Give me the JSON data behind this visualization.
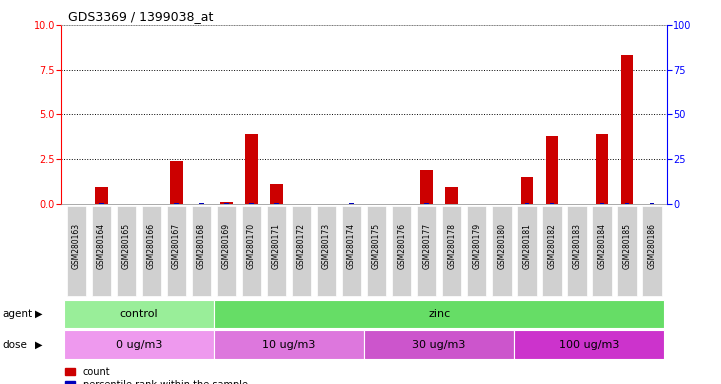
{
  "title": "GDS3369 / 1399038_at",
  "samples": [
    "GSM280163",
    "GSM280164",
    "GSM280165",
    "GSM280166",
    "GSM280167",
    "GSM280168",
    "GSM280169",
    "GSM280170",
    "GSM280171",
    "GSM280172",
    "GSM280173",
    "GSM280174",
    "GSM280175",
    "GSM280176",
    "GSM280177",
    "GSM280178",
    "GSM280179",
    "GSM280180",
    "GSM280181",
    "GSM280182",
    "GSM280183",
    "GSM280184",
    "GSM280185",
    "GSM280186"
  ],
  "count_values": [
    0,
    0.9,
    0,
    0,
    2.4,
    0,
    0.1,
    3.9,
    1.1,
    0,
    0,
    0,
    0,
    0,
    1.9,
    0.9,
    0,
    0,
    1.5,
    3.8,
    0,
    3.9,
    8.3,
    0
  ],
  "percentile_values": [
    0,
    0.07,
    0,
    0,
    0.06,
    0.28,
    0.28,
    0.47,
    0.38,
    0,
    0,
    0.14,
    0,
    0,
    0.38,
    0,
    0,
    0,
    0.47,
    0.47,
    0,
    0.47,
    0.28,
    0.09
  ],
  "ylim_left": [
    0,
    10
  ],
  "ylim_right": [
    0,
    100
  ],
  "yticks_left": [
    0,
    2.5,
    5,
    7.5,
    10
  ],
  "yticks_right": [
    0,
    25,
    50,
    75,
    100
  ],
  "count_color": "#cc0000",
  "percentile_color": "#0000bb",
  "agent_groups": [
    {
      "label": "control",
      "start": 0,
      "end": 5,
      "color": "#99ee99"
    },
    {
      "label": "zinc",
      "start": 6,
      "end": 23,
      "color": "#66dd66"
    }
  ],
  "dose_groups": [
    {
      "label": "0 ug/m3",
      "start": 0,
      "end": 5,
      "color": "#ee99ee"
    },
    {
      "label": "10 ug/m3",
      "start": 6,
      "end": 11,
      "color": "#dd77dd"
    },
    {
      "label": "30 ug/m3",
      "start": 12,
      "end": 17,
      "color": "#cc55cc"
    },
    {
      "label": "100 ug/m3",
      "start": 18,
      "end": 23,
      "color": "#cc33cc"
    }
  ],
  "tick_bg_color": "#d0d0d0",
  "plot_bg": "#ffffff"
}
